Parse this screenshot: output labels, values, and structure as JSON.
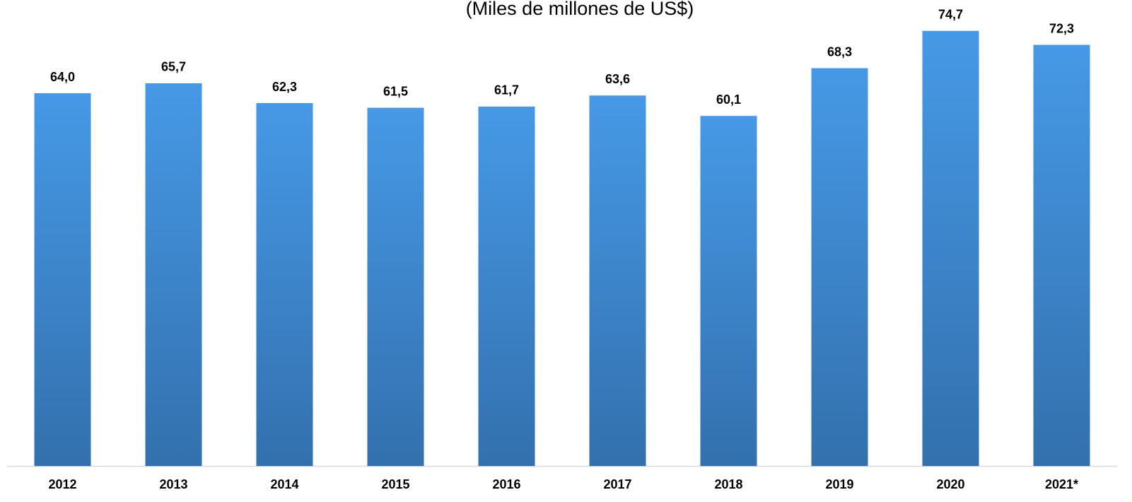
{
  "chart_data": {
    "type": "bar",
    "title": "(Miles de millones de US$)",
    "categories": [
      "2012",
      "2013",
      "2014",
      "2015",
      "2016",
      "2017",
      "2018",
      "2019",
      "2020",
      "2021*"
    ],
    "values": [
      64.0,
      65.7,
      62.3,
      61.5,
      61.7,
      63.6,
      60.1,
      68.3,
      74.7,
      72.3
    ],
    "value_labels": [
      "64,0",
      "65,7",
      "62,3",
      "61,5",
      "61,7",
      "63,6",
      "60,1",
      "68,3",
      "74,7",
      "72,3"
    ],
    "color": "#3f88d4",
    "ylim": [
      0,
      80
    ]
  }
}
